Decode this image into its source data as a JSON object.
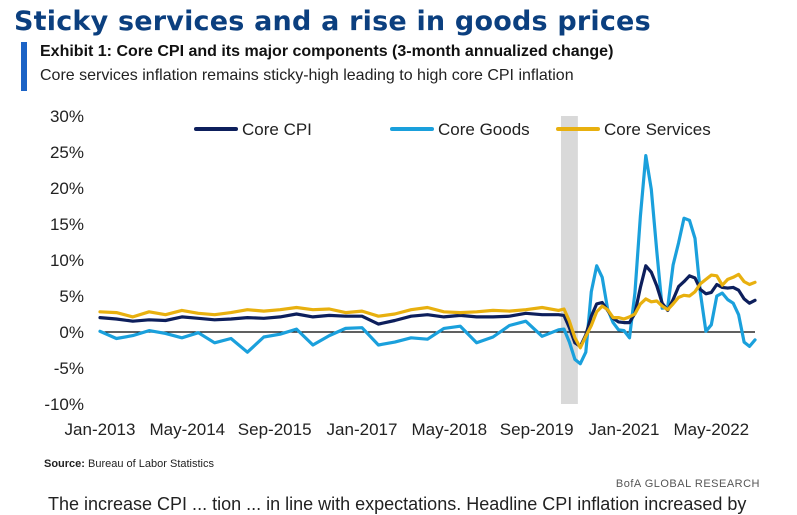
{
  "header": {
    "headline": "Sticky services and a rise in goods prices",
    "exhibit_title": "Exhibit 1: Core CPI and its major components (3-month annualized change)",
    "exhibit_subtitle": "Core services inflation remains sticky-high leading to high core CPI inflation"
  },
  "footer": {
    "source_label": "Source:",
    "source_text": "Bureau of Labor Statistics",
    "attribution": "BofA GLOBAL RESEARCH",
    "cutoff_text": "The increase CPI ... tion ... in line with expectations. Headline CPI inflation increased by"
  },
  "colors": {
    "headline": "#0b3f7f",
    "accent_bar": "#1b63c6",
    "core_cpi": "#0d1f5c",
    "core_goods": "#1aa0dc",
    "core_services": "#e8b00f",
    "recession_shading": "#d9d9d9"
  },
  "chart_data": {
    "type": "line",
    "title": "",
    "xlabel": "",
    "ylabel": "",
    "ylim": [
      -10,
      30
    ],
    "ytick_labels": [
      "30%",
      "25%",
      "20%",
      "15%",
      "10%",
      "5%",
      "0%",
      "-5%",
      "-10%"
    ],
    "xtick_labels": [
      "Jan-2013",
      "May-2014",
      "Sep-2015",
      "Jan-2017",
      "May-2018",
      "Sep-2019",
      "Jan-2021",
      "May-2022"
    ],
    "legend_position": "top",
    "grid": false,
    "zero_line": true,
    "shaded_region": {
      "start": "2020-02",
      "end": "2020-04"
    },
    "series": [
      {
        "name": "Core CPI",
        "values": [
          [
            "2013-01",
            2.0
          ],
          [
            "2013-04",
            1.8
          ],
          [
            "2013-07",
            1.5
          ],
          [
            "2013-10",
            1.7
          ],
          [
            "2014-01",
            1.6
          ],
          [
            "2014-04",
            2.1
          ],
          [
            "2014-07",
            1.9
          ],
          [
            "2014-10",
            1.7
          ],
          [
            "2015-01",
            1.8
          ],
          [
            "2015-04",
            2.0
          ],
          [
            "2015-07",
            1.9
          ],
          [
            "2015-10",
            2.1
          ],
          [
            "2016-01",
            2.5
          ],
          [
            "2016-04",
            2.1
          ],
          [
            "2016-07",
            2.3
          ],
          [
            "2016-10",
            2.2
          ],
          [
            "2017-01",
            2.2
          ],
          [
            "2017-04",
            1.1
          ],
          [
            "2017-07",
            1.6
          ],
          [
            "2017-10",
            2.2
          ],
          [
            "2018-01",
            2.4
          ],
          [
            "2018-04",
            2.1
          ],
          [
            "2018-07",
            2.3
          ],
          [
            "2018-10",
            2.1
          ],
          [
            "2019-01",
            2.1
          ],
          [
            "2019-04",
            2.2
          ],
          [
            "2019-07",
            2.6
          ],
          [
            "2019-10",
            2.4
          ],
          [
            "2020-01",
            2.4
          ],
          [
            "2020-02",
            2.3
          ],
          [
            "2020-03",
            0.6
          ],
          [
            "2020-04",
            -1.5
          ],
          [
            "2020-05",
            -2.0
          ],
          [
            "2020-06",
            -0.4
          ],
          [
            "2020-07",
            2.2
          ],
          [
            "2020-08",
            3.9
          ],
          [
            "2020-09",
            4.1
          ],
          [
            "2020-10",
            3.0
          ],
          [
            "2020-11",
            1.9
          ],
          [
            "2020-12",
            1.4
          ],
          [
            "2021-01",
            1.3
          ],
          [
            "2021-02",
            1.3
          ],
          [
            "2021-03",
            2.6
          ],
          [
            "2021-04",
            6.2
          ],
          [
            "2021-05",
            9.2
          ],
          [
            "2021-06",
            8.3
          ],
          [
            "2021-07",
            6.4
          ],
          [
            "2021-08",
            4.0
          ],
          [
            "2021-09",
            3.0
          ],
          [
            "2021-10",
            4.5
          ],
          [
            "2021-11",
            6.3
          ],
          [
            "2021-12",
            7.0
          ],
          [
            "2022-01",
            7.8
          ],
          [
            "2022-02",
            7.5
          ],
          [
            "2022-03",
            5.9
          ],
          [
            "2022-04",
            5.3
          ],
          [
            "2022-05",
            5.5
          ],
          [
            "2022-06",
            6.6
          ],
          [
            "2022-07",
            6.2
          ],
          [
            "2022-08",
            6.1
          ],
          [
            "2022-09",
            6.2
          ],
          [
            "2022-10",
            5.8
          ],
          [
            "2022-11",
            4.6
          ],
          [
            "2022-12",
            4.0
          ],
          [
            "2023-01",
            4.4
          ]
        ]
      },
      {
        "name": "Core Goods",
        "values": [
          [
            "2013-01",
            0.1
          ],
          [
            "2013-04",
            -0.9
          ],
          [
            "2013-07",
            -0.5
          ],
          [
            "2013-10",
            0.2
          ],
          [
            "2014-01",
            -0.2
          ],
          [
            "2014-04",
            -0.8
          ],
          [
            "2014-07",
            -0.1
          ],
          [
            "2014-10",
            -1.5
          ],
          [
            "2015-01",
            -0.9
          ],
          [
            "2015-04",
            -2.8
          ],
          [
            "2015-07",
            -0.7
          ],
          [
            "2015-10",
            -0.3
          ],
          [
            "2016-01",
            0.4
          ],
          [
            "2016-04",
            -1.8
          ],
          [
            "2016-07",
            -0.5
          ],
          [
            "2016-10",
            0.5
          ],
          [
            "2017-01",
            0.6
          ],
          [
            "2017-04",
            -1.8
          ],
          [
            "2017-07",
            -1.4
          ],
          [
            "2017-10",
            -0.8
          ],
          [
            "2018-01",
            -1.0
          ],
          [
            "2018-04",
            0.5
          ],
          [
            "2018-07",
            0.8
          ],
          [
            "2018-10",
            -1.5
          ],
          [
            "2019-01",
            -0.7
          ],
          [
            "2019-04",
            0.9
          ],
          [
            "2019-07",
            1.5
          ],
          [
            "2019-10",
            -0.6
          ],
          [
            "2020-01",
            0.3
          ],
          [
            "2020-02",
            0.4
          ],
          [
            "2020-03",
            -1.4
          ],
          [
            "2020-04",
            -3.8
          ],
          [
            "2020-05",
            -4.4
          ],
          [
            "2020-06",
            -2.8
          ],
          [
            "2020-07",
            5.6
          ],
          [
            "2020-08",
            9.2
          ],
          [
            "2020-09",
            7.6
          ],
          [
            "2020-10",
            3.2
          ],
          [
            "2020-11",
            1.3
          ],
          [
            "2020-12",
            0.3
          ],
          [
            "2021-01",
            0.2
          ],
          [
            "2021-02",
            -0.8
          ],
          [
            "2021-03",
            5.4
          ],
          [
            "2021-04",
            16.1
          ],
          [
            "2021-05",
            24.5
          ],
          [
            "2021-06",
            19.8
          ],
          [
            "2021-07",
            11.2
          ],
          [
            "2021-08",
            3.3
          ],
          [
            "2021-09",
            3.4
          ],
          [
            "2021-10",
            9.3
          ],
          [
            "2021-11",
            12.4
          ],
          [
            "2021-12",
            15.8
          ],
          [
            "2022-01",
            15.5
          ],
          [
            "2022-02",
            13.0
          ],
          [
            "2022-03",
            5.4
          ],
          [
            "2022-04",
            0.1
          ],
          [
            "2022-05",
            1.0
          ],
          [
            "2022-06",
            5.0
          ],
          [
            "2022-07",
            5.4
          ],
          [
            "2022-08",
            4.5
          ],
          [
            "2022-09",
            4.0
          ],
          [
            "2022-10",
            2.4
          ],
          [
            "2022-11",
            -1.4
          ],
          [
            "2022-12",
            -2.0
          ],
          [
            "2023-01",
            -1.1
          ]
        ]
      },
      {
        "name": "Core Services",
        "values": [
          [
            "2013-01",
            2.8
          ],
          [
            "2013-04",
            2.7
          ],
          [
            "2013-07",
            2.1
          ],
          [
            "2013-10",
            2.8
          ],
          [
            "2014-01",
            2.4
          ],
          [
            "2014-04",
            3.0
          ],
          [
            "2014-07",
            2.6
          ],
          [
            "2014-10",
            2.4
          ],
          [
            "2015-01",
            2.7
          ],
          [
            "2015-04",
            3.1
          ],
          [
            "2015-07",
            2.9
          ],
          [
            "2015-10",
            3.1
          ],
          [
            "2016-01",
            3.4
          ],
          [
            "2016-04",
            3.1
          ],
          [
            "2016-07",
            3.2
          ],
          [
            "2016-10",
            2.7
          ],
          [
            "2017-01",
            2.9
          ],
          [
            "2017-04",
            2.2
          ],
          [
            "2017-07",
            2.5
          ],
          [
            "2017-10",
            3.1
          ],
          [
            "2018-01",
            3.4
          ],
          [
            "2018-04",
            2.8
          ],
          [
            "2018-07",
            2.7
          ],
          [
            "2018-10",
            2.8
          ],
          [
            "2019-01",
            3.0
          ],
          [
            "2019-04",
            2.9
          ],
          [
            "2019-07",
            3.1
          ],
          [
            "2019-10",
            3.4
          ],
          [
            "2020-01",
            3.0
          ],
          [
            "2020-02",
            3.2
          ],
          [
            "2020-03",
            1.5
          ],
          [
            "2020-04",
            -0.8
          ],
          [
            "2020-05",
            -2.2
          ],
          [
            "2020-06",
            -0.6
          ],
          [
            "2020-07",
            0.9
          ],
          [
            "2020-08",
            2.8
          ],
          [
            "2020-09",
            3.6
          ],
          [
            "2020-10",
            3.1
          ],
          [
            "2020-11",
            2.0
          ],
          [
            "2020-12",
            2.0
          ],
          [
            "2021-01",
            1.8
          ],
          [
            "2021-02",
            2.1
          ],
          [
            "2021-03",
            2.5
          ],
          [
            "2021-04",
            3.9
          ],
          [
            "2021-05",
            4.6
          ],
          [
            "2021-06",
            4.2
          ],
          [
            "2021-07",
            4.3
          ],
          [
            "2021-08",
            3.6
          ],
          [
            "2021-09",
            3.1
          ],
          [
            "2021-10",
            3.9
          ],
          [
            "2021-11",
            4.8
          ],
          [
            "2021-12",
            5.1
          ],
          [
            "2022-01",
            5.0
          ],
          [
            "2022-02",
            5.6
          ],
          [
            "2022-03",
            6.7
          ],
          [
            "2022-04",
            7.3
          ],
          [
            "2022-05",
            7.9
          ],
          [
            "2022-06",
            7.8
          ],
          [
            "2022-07",
            6.5
          ],
          [
            "2022-08",
            7.3
          ],
          [
            "2022-09",
            7.6
          ],
          [
            "2022-10",
            8.0
          ],
          [
            "2022-11",
            7.0
          ],
          [
            "2022-12",
            6.6
          ],
          [
            "2023-01",
            6.9
          ]
        ]
      }
    ]
  }
}
